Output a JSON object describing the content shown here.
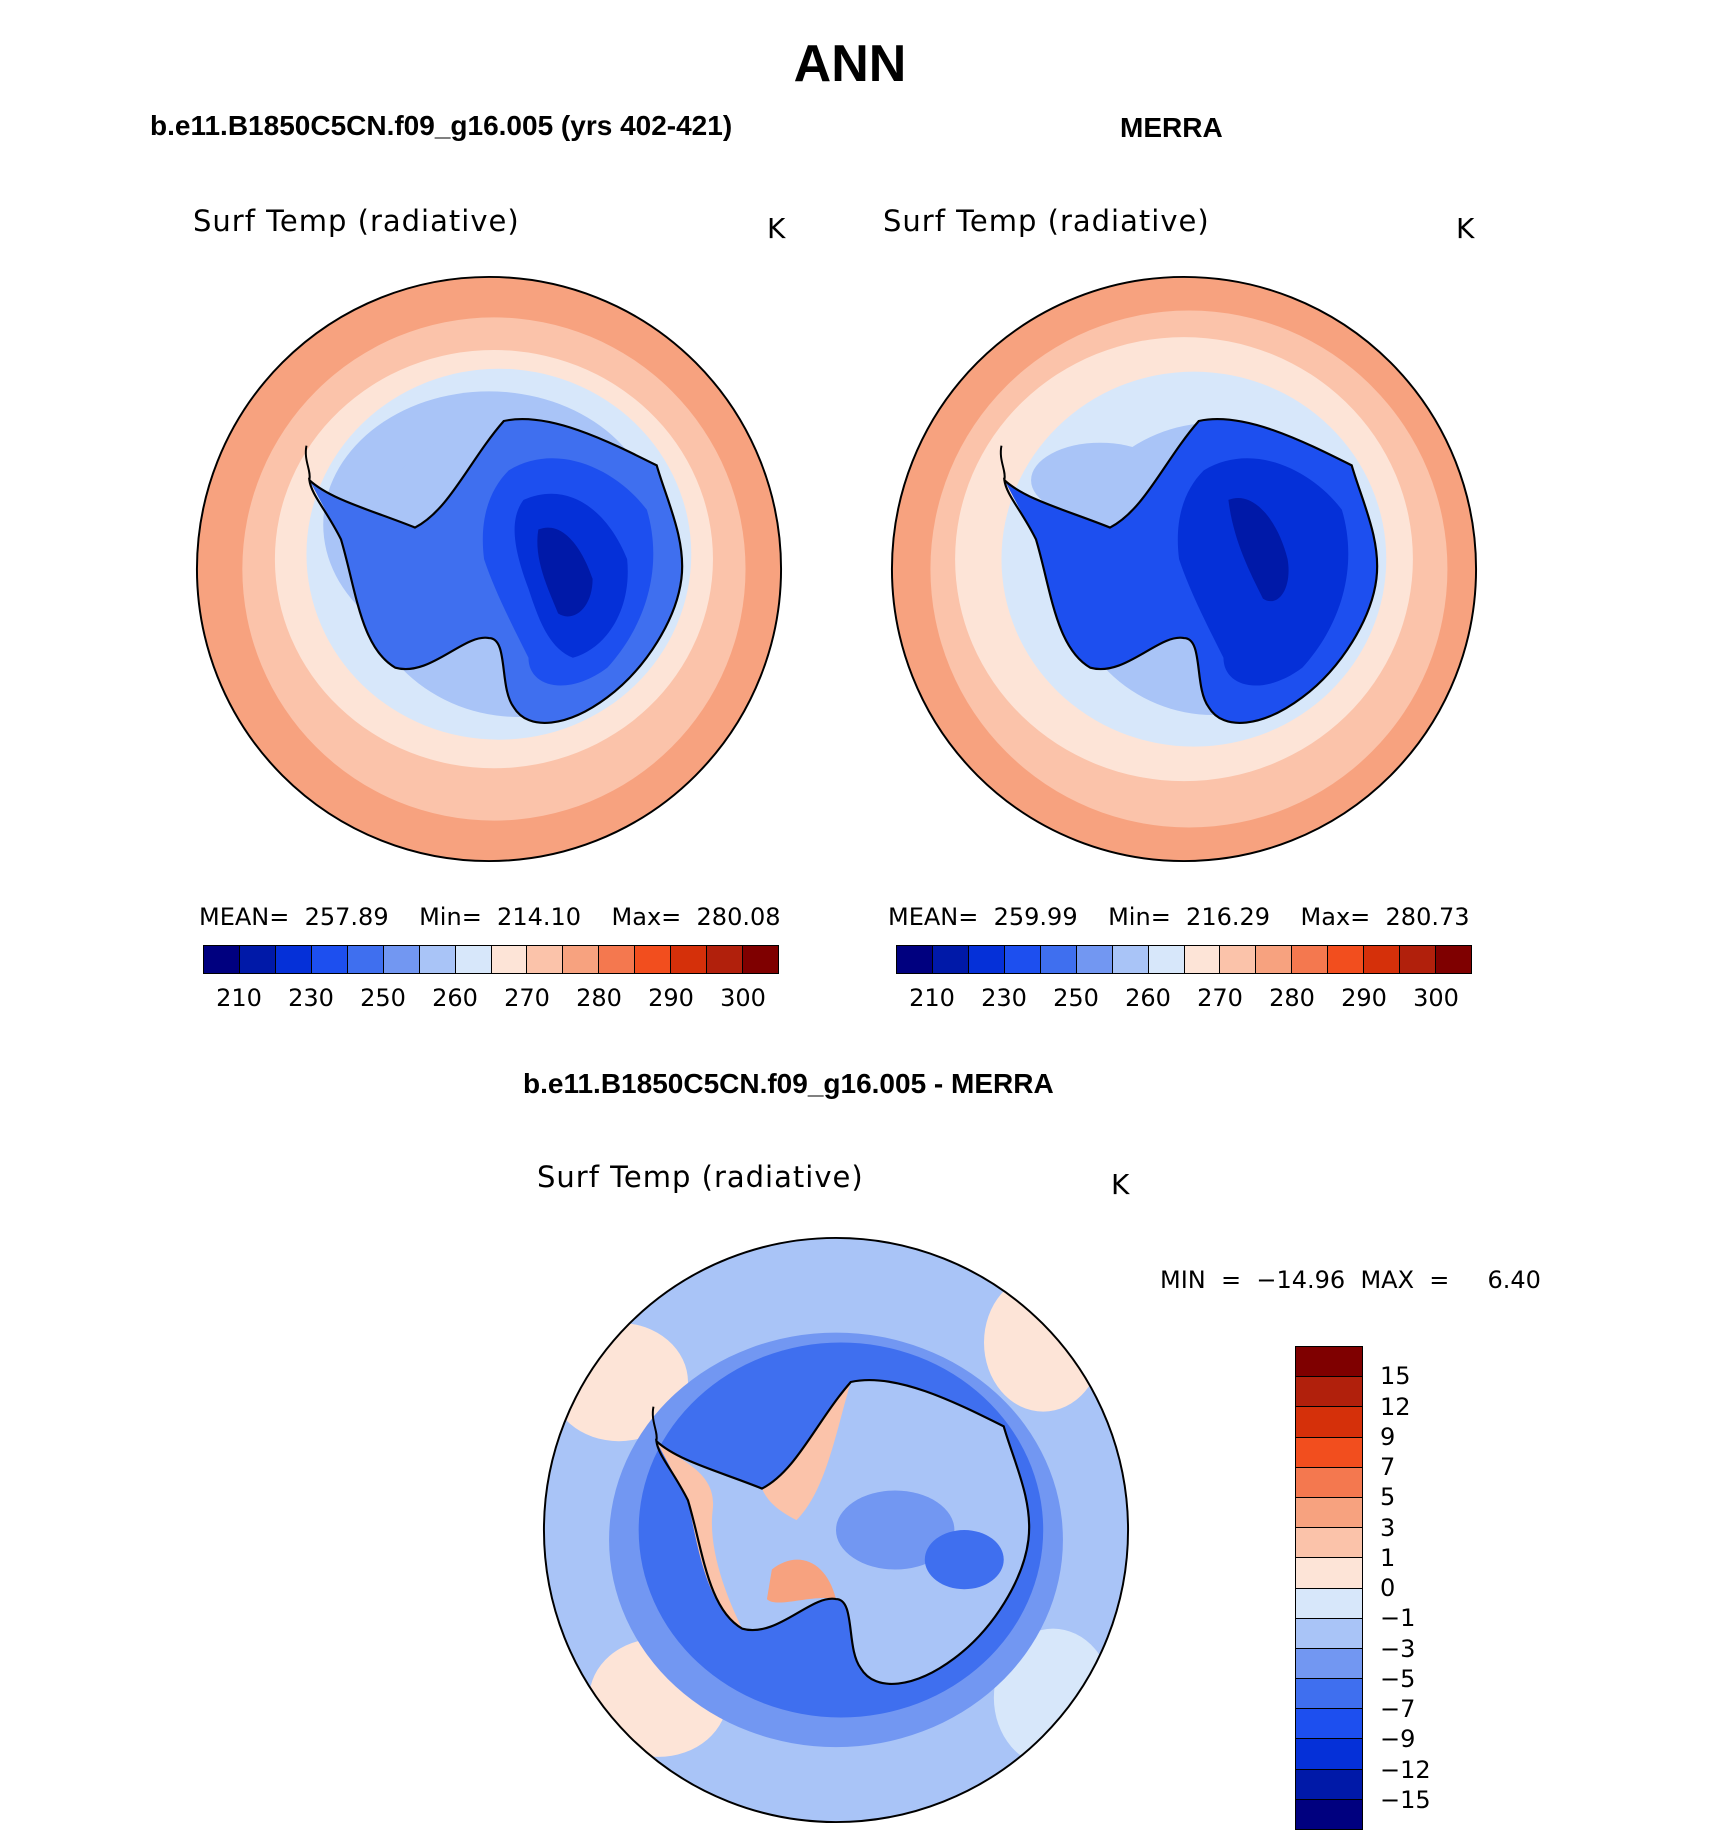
{
  "title": "ANN",
  "panels": [
    {
      "header": "b.e11.B1850C5CN.f09_g16.005 (yrs 402-421)",
      "field": "Surf Temp (radiative)",
      "units": "K",
      "stats": "MEAN=  257.89    Min=  214.10    Max=  280.08"
    },
    {
      "header": "MERRA",
      "field": "Surf Temp (radiative)",
      "units": "K",
      "stats": "MEAN=  259.99    Min=  216.29    Max=  280.73"
    },
    {
      "header": "b.e11.B1850C5CN.f09_g16.005 - MERRA",
      "field": "Surf Temp (radiative)",
      "units": "K",
      "stats": "MIN  =  −14.96  MAX  =     6.40"
    }
  ],
  "abs_colorbar": {
    "ticks": [
      "210",
      "230",
      "250",
      "260",
      "270",
      "280",
      "290",
      "300"
    ],
    "colors": [
      "#00007f",
      "#0019a8",
      "#0530d8",
      "#1d4fef",
      "#3f6fef",
      "#7297f2",
      "#a9c4f7",
      "#d7e7fa",
      "#fde4d7",
      "#fbc3aa",
      "#f7a27f",
      "#f4784f",
      "#f24e1e",
      "#d5300a",
      "#b1200c",
      "#7f0000"
    ]
  },
  "diff_colorbar": {
    "labels": [
      "15",
      "12",
      "9",
      "7",
      "5",
      "3",
      "1",
      "0",
      "−1",
      "−3",
      "−5",
      "−7",
      "−9",
      "−12",
      "−15"
    ],
    "colors": [
      "#7f0000",
      "#b1200c",
      "#d5300a",
      "#f24e1e",
      "#f4784f",
      "#f7a27f",
      "#fbc3aa",
      "#fde4d7",
      "#d7e7fa",
      "#a9c4f7",
      "#7297f2",
      "#3f6fef",
      "#1d4fef",
      "#0530d8",
      "#0019a8",
      "#00007f"
    ]
  }
}
